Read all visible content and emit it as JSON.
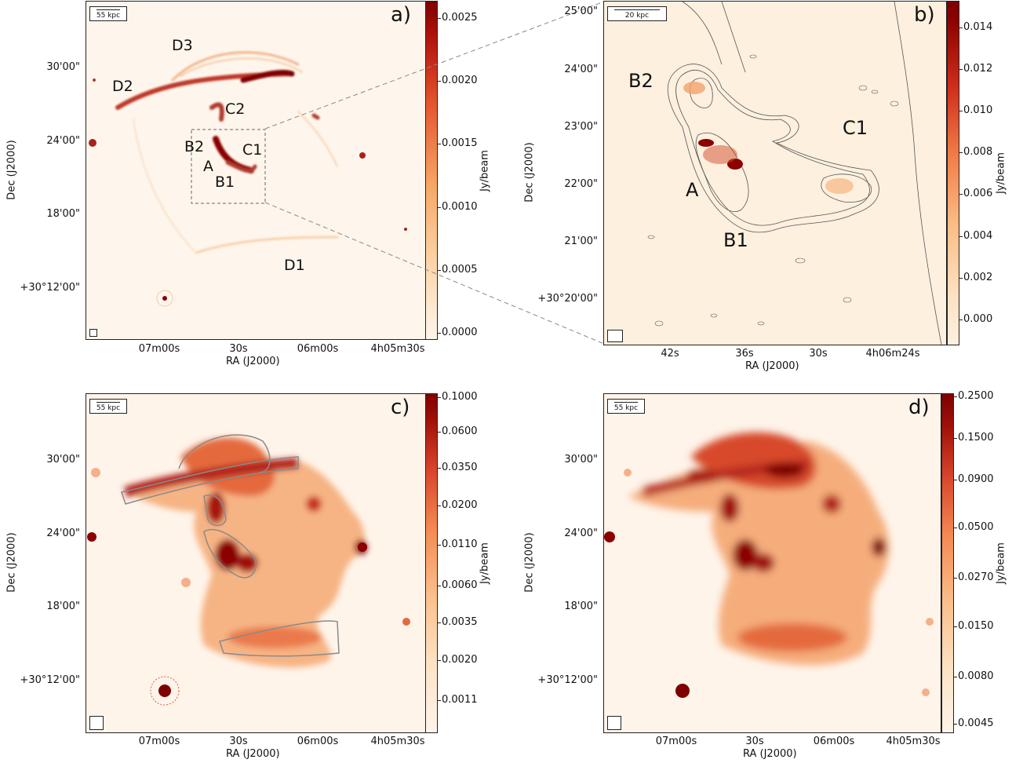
{
  "panels": [
    {
      "id": "a",
      "panel_label": "a)",
      "scalebar": "55 kpc",
      "yticks": [
        "30'00\"",
        "24'00\"",
        "18'00\"",
        "+30°12'00\""
      ],
      "xticks": [
        "07m00s",
        "30s",
        "06m00s",
        "4h05m30s"
      ],
      "ylabel": "Dec (J2000)",
      "xlabel": "RA (J2000)",
      "cbar_label": "Jy/beam",
      "cbar_ticks": [
        "0.0025",
        "0.0020",
        "0.0015",
        "0.0010",
        "0.0005",
        "0.0000"
      ],
      "regions": [
        "D3",
        "D2",
        "C2",
        "B2",
        "C1",
        "A",
        "B1",
        "D1"
      ]
    },
    {
      "id": "b",
      "panel_label": "b)",
      "scalebar": "20 kpc",
      "yticks": [
        "25'00\"",
        "24'00\"",
        "23'00\"",
        "22'00\"",
        "21'00\"",
        "+30°20'00\""
      ],
      "xticks": [
        "42s",
        "36s",
        "30s",
        "4h06m24s"
      ],
      "ylabel": "Dec (J2000)",
      "xlabel": "RA (J2000)",
      "cbar_label": "Jy/beam",
      "cbar_ticks": [
        "0.014",
        "0.012",
        "0.010",
        "0.008",
        "0.006",
        "0.004",
        "0.002",
        "0.000"
      ],
      "regions": [
        "B2",
        "C1",
        "A",
        "B1"
      ]
    },
    {
      "id": "c",
      "panel_label": "c)",
      "scalebar": "55 kpc",
      "yticks": [
        "30'00\"",
        "24'00\"",
        "18'00\"",
        "+30°12'00\""
      ],
      "xticks": [
        "07m00s",
        "30s",
        "06m00s",
        "4h05m30s"
      ],
      "ylabel": "Dec (J2000)",
      "xlabel": "RA (J2000)",
      "cbar_label": "Jy/beam",
      "cbar_ticks": [
        "0.1000",
        "0.0600",
        "0.0350",
        "0.0200",
        "0.0110",
        "0.0060",
        "0.0035",
        "0.0020",
        "0.0011"
      ]
    },
    {
      "id": "d",
      "panel_label": "d)",
      "scalebar": "55 kpc",
      "yticks": [
        "30'00\"",
        "24'00\"",
        "18'00\"",
        "+30°12'00\""
      ],
      "xticks": [
        "07m00s",
        "30s",
        "06m00s",
        "4h05m30s"
      ],
      "ylabel": "Dec (J2000)",
      "xlabel": "RA (J2000)",
      "cbar_label": "Jy/beam",
      "cbar_ticks": [
        "0.2500",
        "0.1500",
        "0.0900",
        "0.0500",
        "0.0270",
        "0.0150",
        "0.0080",
        "0.0045"
      ]
    }
  ],
  "colors": {
    "cmap_low": "#fdf3e6",
    "cmap_mid": "#f4a164",
    "cmap_high": "#7f0000",
    "contour": "#555555"
  }
}
